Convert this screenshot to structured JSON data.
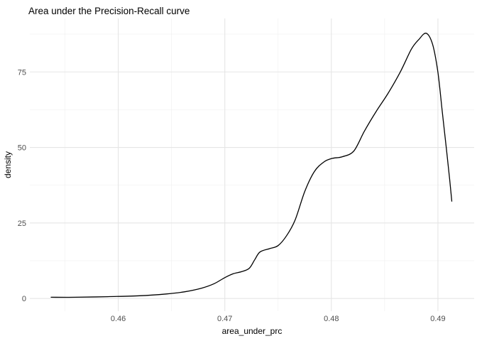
{
  "title": "Area under the Precision-Recall curve",
  "chart_data": {
    "type": "line",
    "subtype": "density",
    "title": "Area under the Precision-Recall curve",
    "xlabel": "area_under_prc",
    "ylabel": "density",
    "legend": "none",
    "grid": "on",
    "background": "#ffffff",
    "line_color": "#000000",
    "grid_major_color": "#e5e5e5",
    "grid_minor_color": "#f0f0f0",
    "tick_label_color": "#4d4d4d",
    "xlim": [
      0.4517,
      0.4934
    ],
    "ylim": [
      -4.2,
      92.7
    ],
    "x_ticks": [
      0.46,
      0.47,
      0.48,
      0.49
    ],
    "x_tick_labels": [
      "0.46",
      "0.47",
      "0.48",
      "0.49"
    ],
    "x_minor_ticks": [
      0.455,
      0.465,
      0.475,
      0.485
    ],
    "y_ticks": [
      0,
      25,
      50,
      75
    ],
    "y_tick_labels": [
      "0",
      "25",
      "50",
      "75"
    ],
    "y_minor_ticks": [
      12.5,
      37.5,
      62.5,
      87.5
    ],
    "x": [
      0.4537,
      0.456,
      0.459,
      0.462,
      0.4645,
      0.4662,
      0.4678,
      0.469,
      0.47,
      0.4708,
      0.4716,
      0.4723,
      0.4728,
      0.4733,
      0.4742,
      0.475,
      0.4758,
      0.4766,
      0.4775,
      0.4784,
      0.4793,
      0.4801,
      0.481,
      0.4821,
      0.4831,
      0.4842,
      0.4853,
      0.4865,
      0.4875,
      0.4882,
      0.4889,
      0.4895,
      0.49,
      0.4904,
      0.4908,
      0.4911,
      0.4913
    ],
    "y": [
      0.4,
      0.4,
      0.6,
      0.9,
      1.5,
      2.2,
      3.4,
      4.9,
      6.9,
      8.2,
      8.9,
      10.0,
      12.8,
      15.4,
      16.5,
      17.5,
      20.8,
      26.0,
      35.4,
      42.0,
      45.2,
      46.4,
      46.9,
      48.8,
      55.4,
      61.9,
      67.8,
      75.2,
      82.5,
      85.7,
      87.8,
      84.1,
      74.8,
      62.0,
      49.3,
      39.4,
      32.2
    ]
  }
}
